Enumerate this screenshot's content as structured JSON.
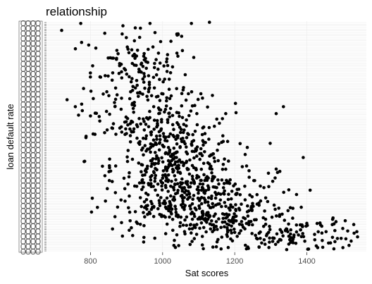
{
  "chart_data": {
    "type": "scatter",
    "title": "relationship",
    "xlabel": "Sat scores",
    "ylabel": "loan default rate",
    "xlim": [
      680,
      1565
    ],
    "ylim": [
      0,
      1
    ],
    "x_ticks": [
      800,
      1000,
      1200,
      1400
    ],
    "x_tick_labels": [
      "800",
      "1000",
      "1200",
      "1400"
    ],
    "y_tick_count": 140,
    "grid": true,
    "gridline_color": "#ebebeb",
    "point_color": "#000000",
    "notes_y": "categorical y axis with overlapping unreadable tick labels",
    "clusters": [
      {
        "x_mean": 930,
        "x_sd": 75,
        "y_mean": 0.72,
        "y_sd": 0.15,
        "n": 230
      },
      {
        "x_mean": 1030,
        "x_sd": 85,
        "y_mean": 0.36,
        "y_sd": 0.14,
        "n": 520
      },
      {
        "x_mean": 1160,
        "x_sd": 95,
        "y_mean": 0.16,
        "y_sd": 0.09,
        "n": 330
      },
      {
        "x_mean": 1380,
        "x_sd": 80,
        "y_mean": 0.07,
        "y_sd": 0.05,
        "n": 110
      }
    ],
    "highlighted_points": [
      {
        "x": 773,
        "y": 0.99
      },
      {
        "x": 965,
        "y": 0.99
      },
      {
        "x": 1080,
        "y": 0.99
      },
      {
        "x": 1130,
        "y": 0.995
      },
      {
        "x": 720,
        "y": 0.96
      },
      {
        "x": 890,
        "y": 0.98
      },
      {
        "x": 735,
        "y": 0.66
      },
      {
        "x": 758,
        "y": 0.63
      },
      {
        "x": 800,
        "y": 0.59
      },
      {
        "x": 1095,
        "y": 0.6
      },
      {
        "x": 1175,
        "y": 0.6
      },
      {
        "x": 1315,
        "y": 0.6
      },
      {
        "x": 1335,
        "y": 0.63
      },
      {
        "x": 1390,
        "y": 0.41
      },
      {
        "x": 1315,
        "y": 0.36
      },
      {
        "x": 1325,
        "y": 0.35
      },
      {
        "x": 1350,
        "y": 0.27
      },
      {
        "x": 1530,
        "y": 0.12
      },
      {
        "x": 1495,
        "y": 0.06
      },
      {
        "x": 1460,
        "y": 0.04
      },
      {
        "x": 1500,
        "y": 0.02
      },
      {
        "x": 1430,
        "y": 0.02
      },
      {
        "x": 1475,
        "y": 0.015
      }
    ]
  }
}
